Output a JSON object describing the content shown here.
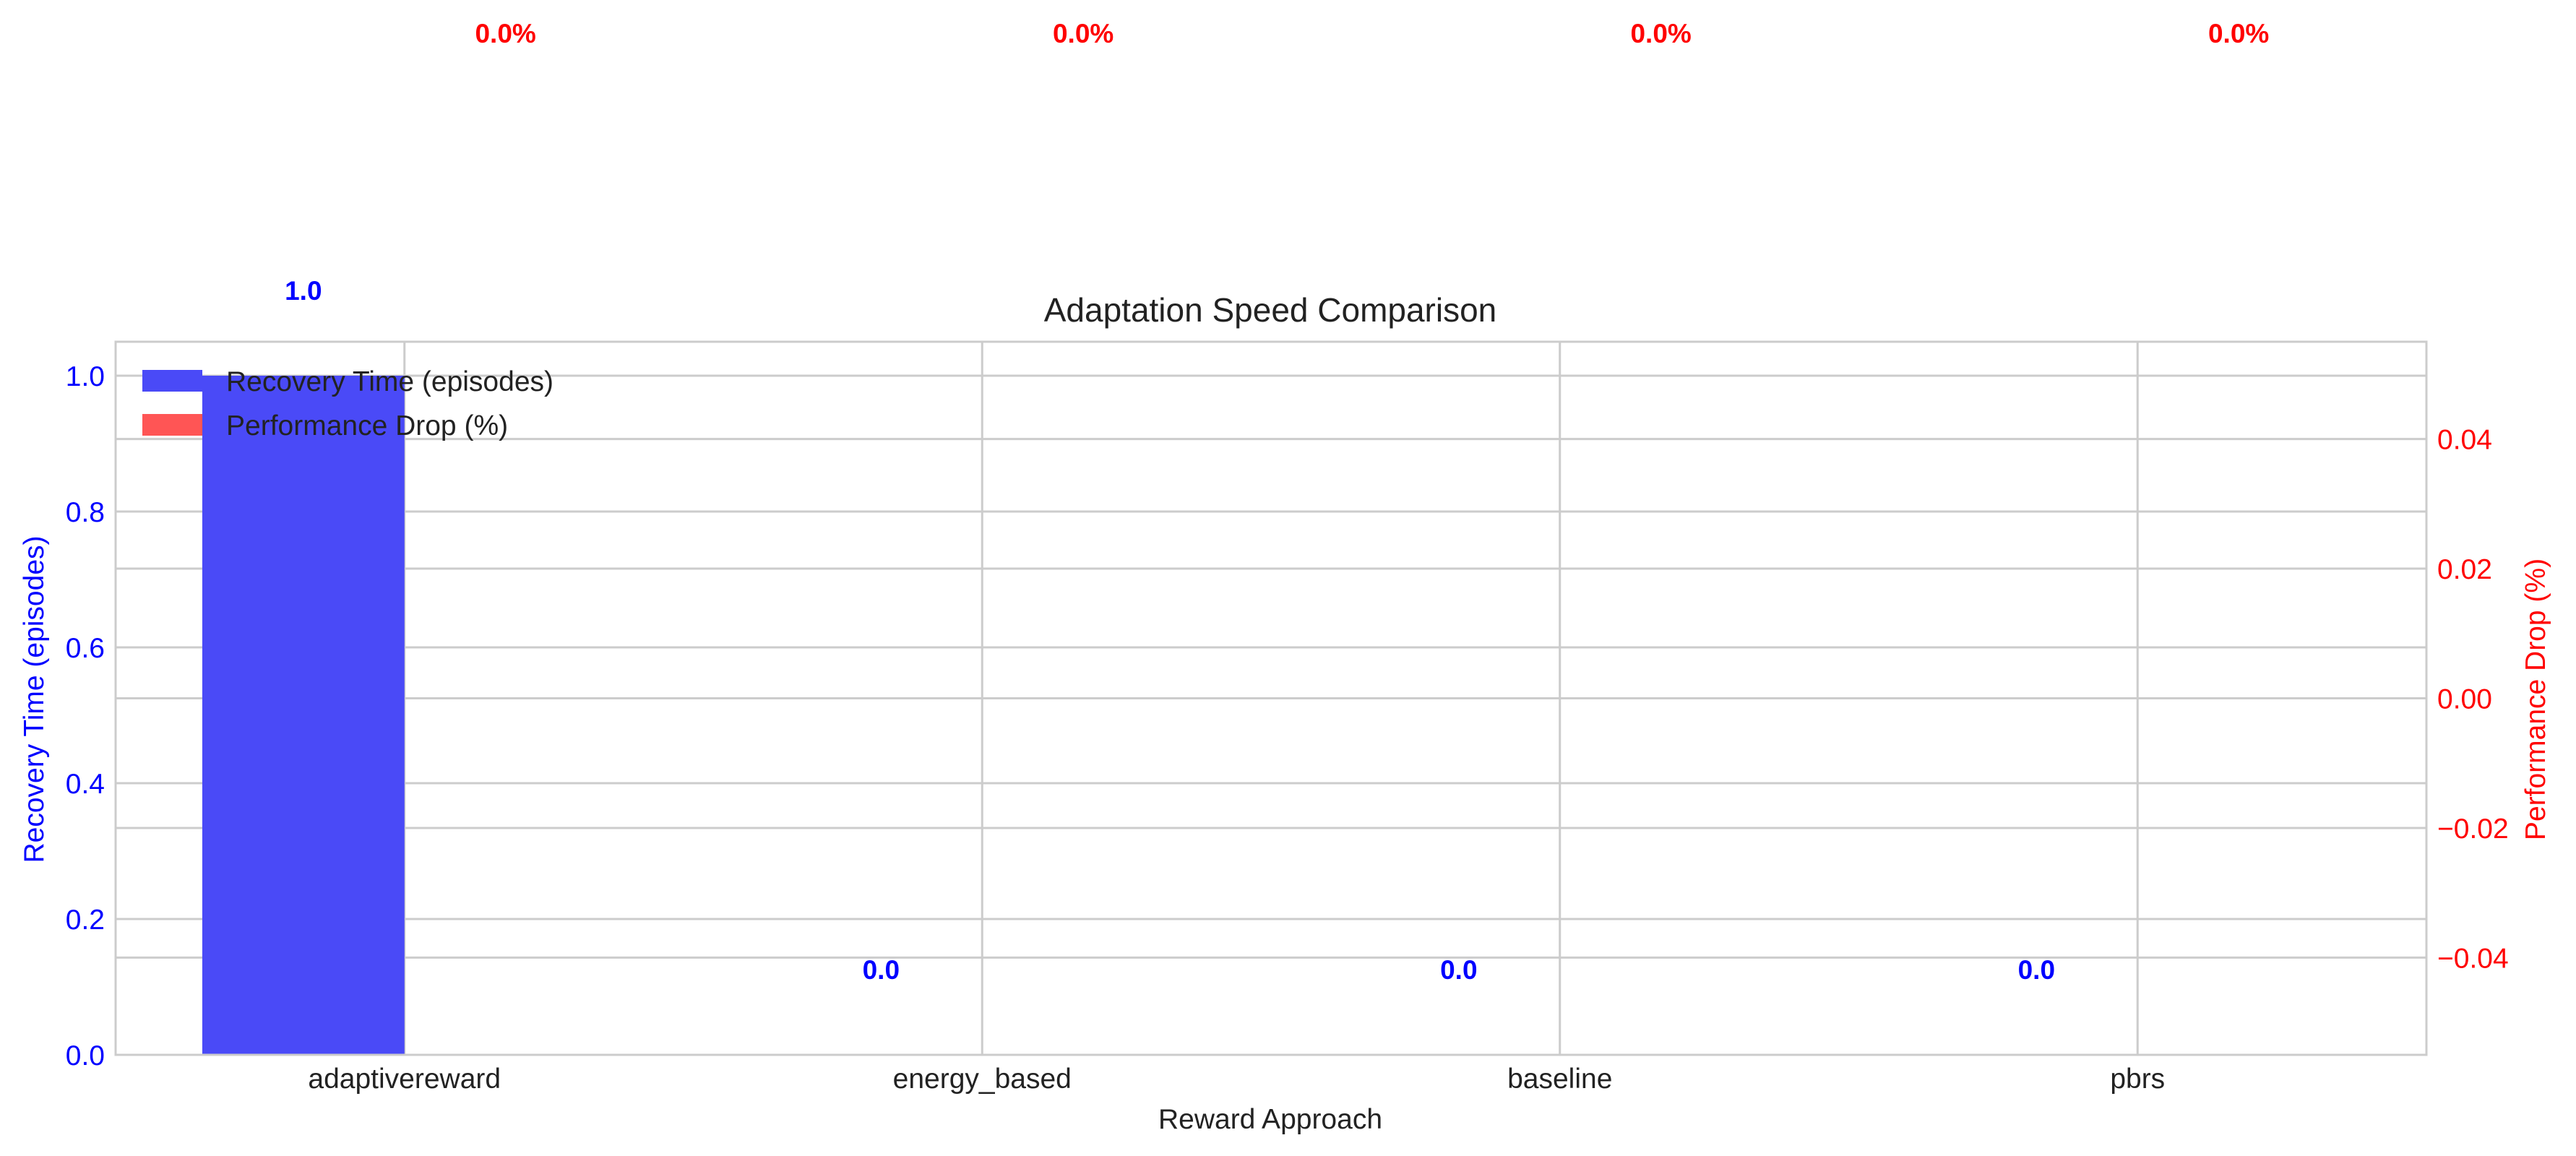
{
  "chart_data": {
    "type": "bar",
    "title": "Adaptation Speed Comparison",
    "xlabel": "Reward Approach",
    "ylabel_left": "Recovery Time (episodes)",
    "ylabel_right": "Performance Drop (%)",
    "categories": [
      "adaptivereward",
      "energy_based",
      "baseline",
      "pbrs"
    ],
    "series": [
      {
        "name": "Recovery Time (episodes)",
        "axis": "left",
        "color": "#4a4af7",
        "values": [
          1.0,
          0.0,
          0.0,
          0.0
        ],
        "labels": [
          "1.0",
          "0.0",
          "0.0",
          "0.0"
        ],
        "label_color": "#0000ff"
      },
      {
        "name": "Performance Drop (%)",
        "axis": "right",
        "color": "#ff5555",
        "values": [
          0.0,
          0.0,
          0.0,
          0.0
        ],
        "labels": [
          "0.0%",
          "0.0%",
          "0.0%",
          "0.0%"
        ],
        "label_color": "#ff0000"
      }
    ],
    "ylim_left": [
      0,
      1.05
    ],
    "ylim_right": [
      -0.055,
      0.055
    ],
    "yticks_left": [
      {
        "v": 0.0,
        "label": "0.0"
      },
      {
        "v": 0.2,
        "label": "0.2"
      },
      {
        "v": 0.4,
        "label": "0.4"
      },
      {
        "v": 0.6,
        "label": "0.6"
      },
      {
        "v": 0.8,
        "label": "0.8"
      },
      {
        "v": 1.0,
        "label": "1.0"
      }
    ],
    "yticks_right": [
      {
        "v": -0.04,
        "label": "−0.04"
      },
      {
        "v": -0.02,
        "label": "−0.02"
      },
      {
        "v": 0.0,
        "label": "0.00"
      },
      {
        "v": 0.02,
        "label": "0.02"
      },
      {
        "v": 0.04,
        "label": "0.04"
      }
    ],
    "grid": true,
    "legend_position": "top-left",
    "left_axis_color": "#0000ff",
    "right_axis_color": "#ff0000"
  }
}
